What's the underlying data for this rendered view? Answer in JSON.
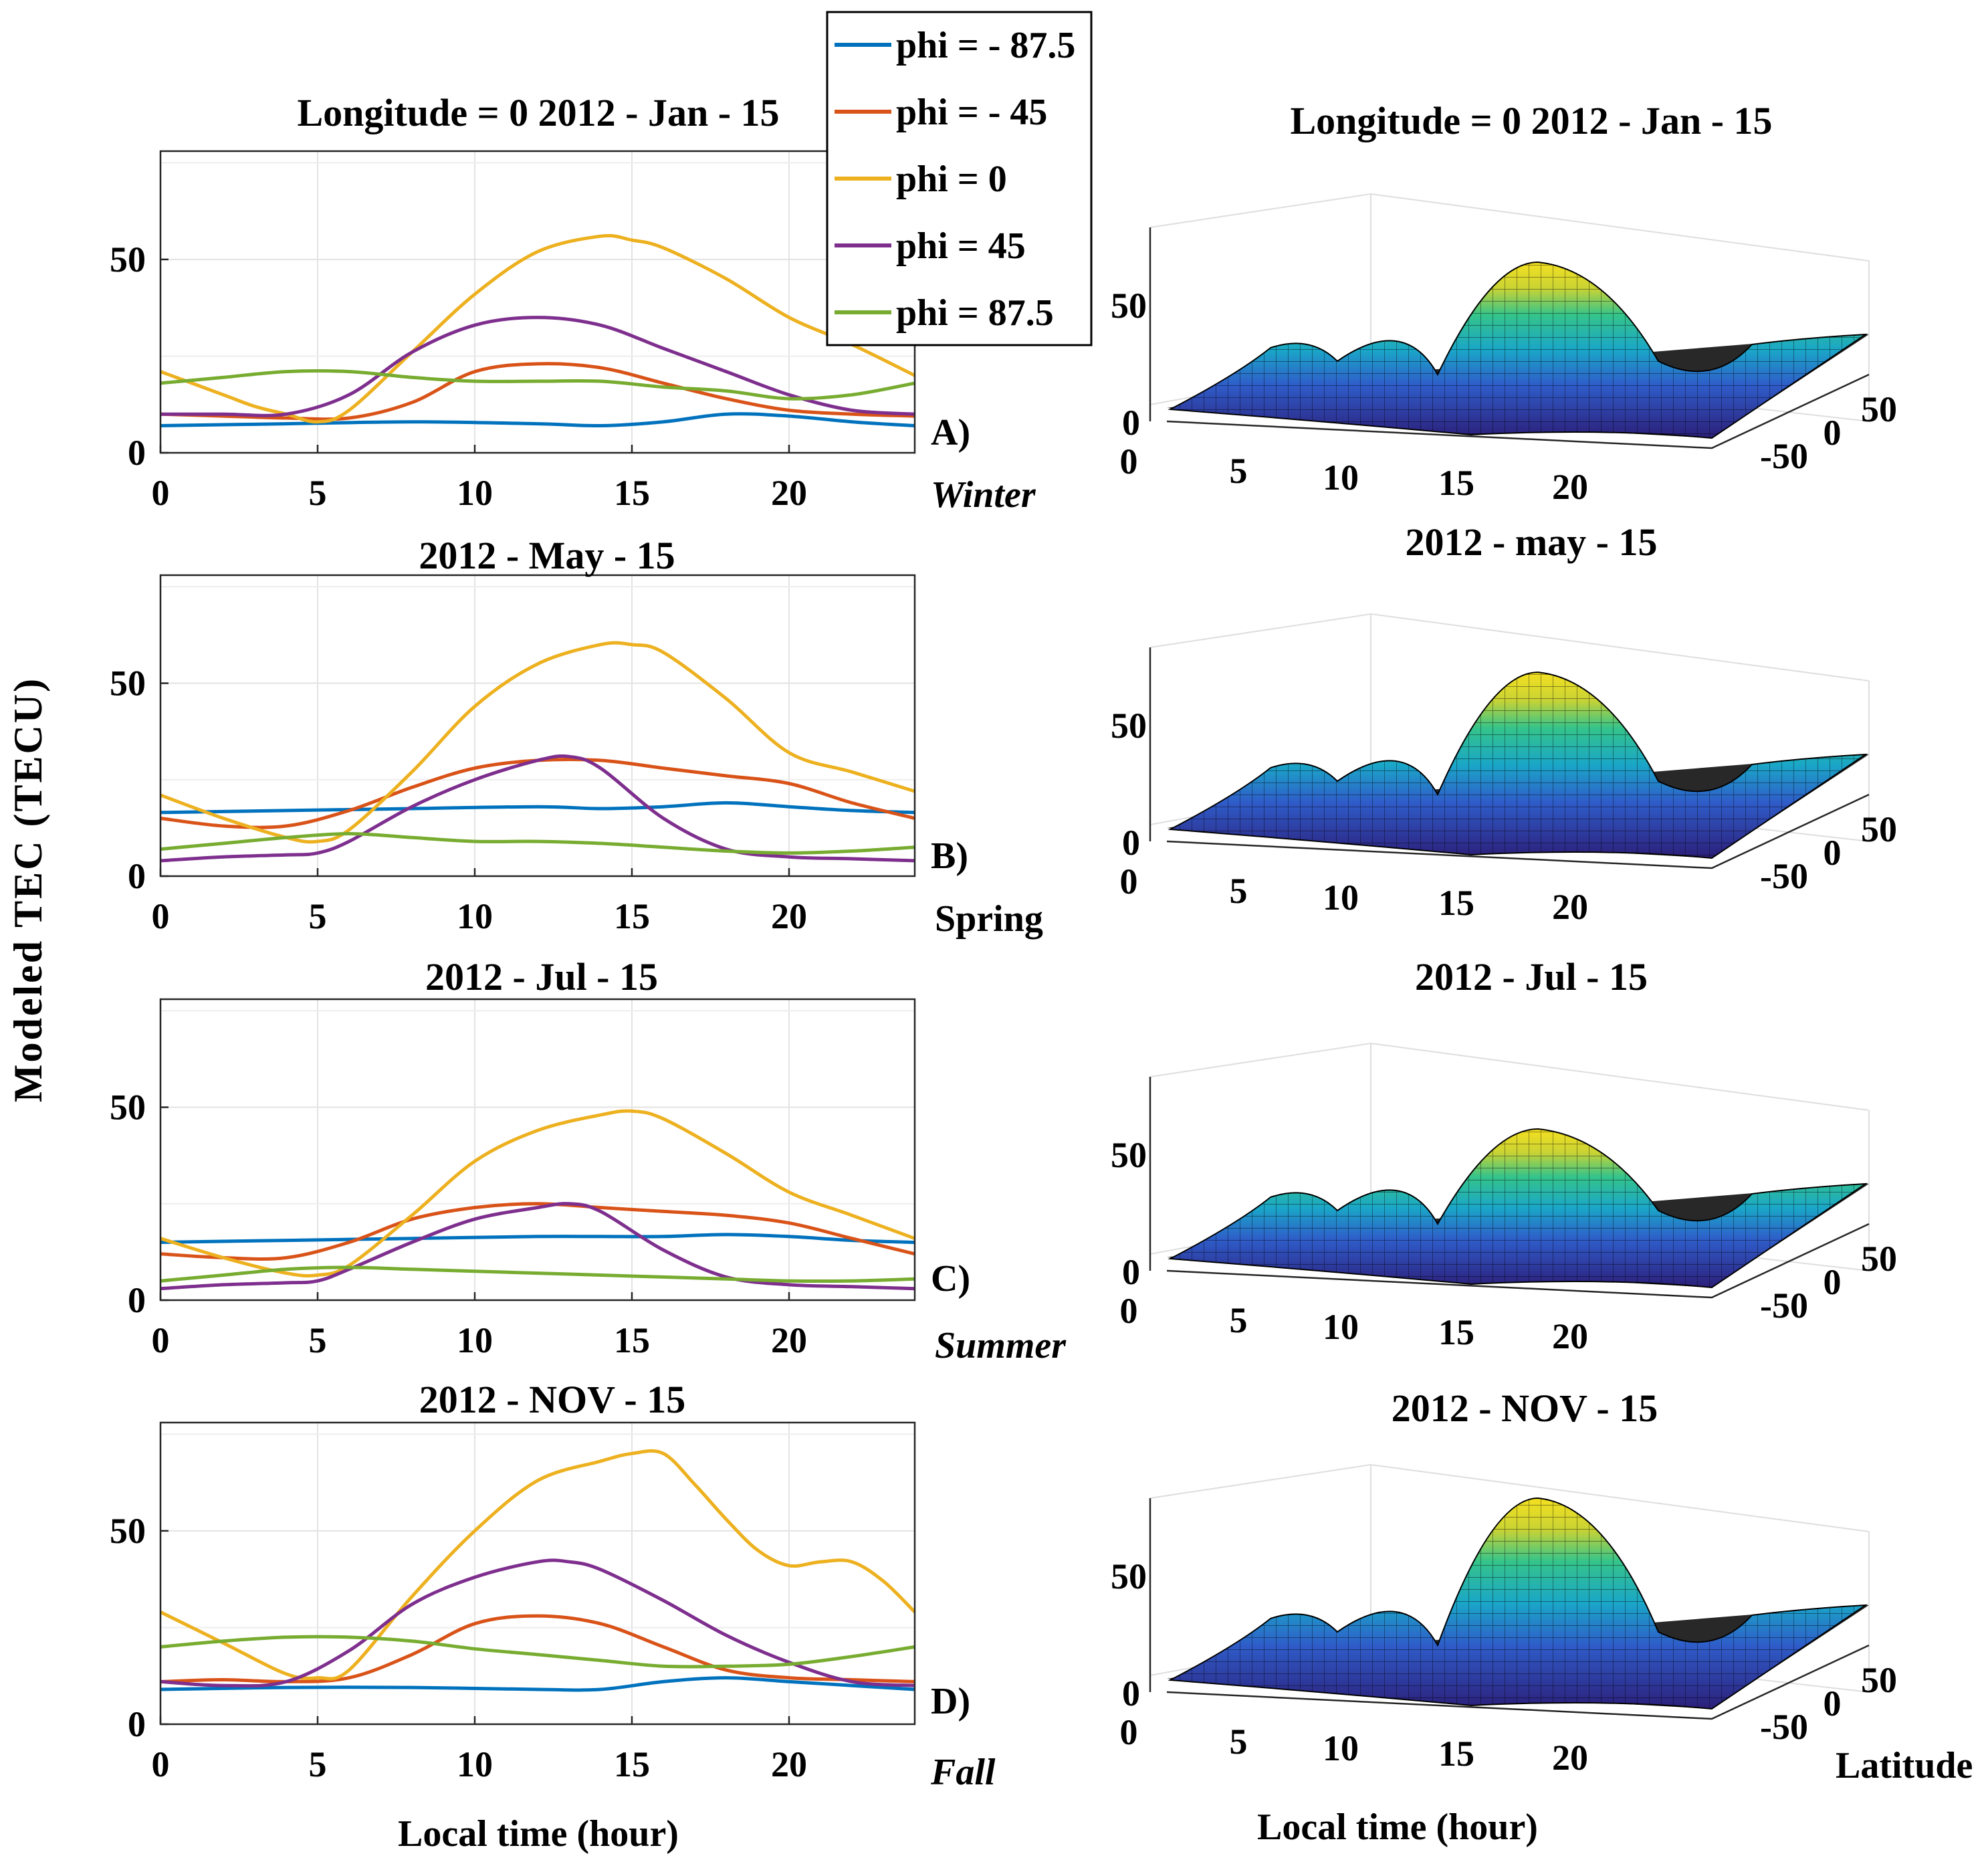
{
  "figure": {
    "ylabel": "Modeled TEC (TECU)",
    "xlabel_left": "Local time (hour)",
    "xlabel_right": "Local time (hour)",
    "latitude_label": "Latitude"
  },
  "legend": {
    "entries": [
      {
        "label": "phi = - 87.5",
        "color": "#0072BD"
      },
      {
        "label": "phi = - 45",
        "color": "#D95319"
      },
      {
        "label": "phi = 0",
        "color": "#EDB120"
      },
      {
        "label": "phi = 45",
        "color": "#7E2F8E"
      },
      {
        "label": "phi = 87.5",
        "color": "#77AC30"
      }
    ]
  },
  "chart_data": [
    {
      "type": "line",
      "title": "Longitude = 0   2012 - Jan - 15",
      "panel_label": "A)",
      "season": "Winter",
      "xlabel": "",
      "xlim": [
        0,
        24
      ],
      "ylim": [
        0,
        78
      ],
      "xticks": [
        0,
        5,
        10,
        15,
        20
      ],
      "yticks": [
        0,
        50
      ],
      "series": [
        {
          "name": "phi = - 87.5",
          "x": [
            0,
            4,
            8,
            12,
            14,
            16,
            18,
            20,
            22,
            24
          ],
          "values": [
            7,
            7.5,
            8,
            7.5,
            7,
            8,
            10,
            9.5,
            8,
            7
          ]
        },
        {
          "name": "phi = - 45",
          "x": [
            0,
            2,
            4,
            6,
            8,
            10,
            12,
            14,
            16,
            18,
            20,
            22,
            24
          ],
          "values": [
            10,
            9.5,
            9,
            9,
            13,
            21,
            23,
            22,
            18,
            14,
            11,
            10,
            9.5
          ]
        },
        {
          "name": "phi = 0",
          "x": [
            0,
            2,
            3,
            4,
            5,
            6,
            8,
            10,
            12,
            14,
            15,
            16,
            18,
            20,
            22,
            24
          ],
          "values": [
            21,
            15,
            12,
            10,
            8,
            11,
            26,
            41,
            52,
            56,
            55,
            53,
            45,
            35,
            28,
            20
          ]
        },
        {
          "name": "phi = 45",
          "x": [
            0,
            2,
            4,
            6,
            8,
            10,
            12,
            14,
            16,
            18,
            20,
            22,
            24
          ],
          "values": [
            10,
            10,
            10,
            15,
            26,
            33,
            35,
            33,
            27,
            21,
            15,
            11,
            10
          ]
        },
        {
          "name": "phi = 87.5",
          "x": [
            0,
            2,
            4,
            6,
            8,
            10,
            12,
            14,
            16,
            18,
            20,
            22,
            24
          ],
          "values": [
            18,
            19.5,
            21,
            21,
            19.5,
            18.5,
            18.5,
            18.5,
            17,
            16,
            14,
            15,
            18
          ]
        }
      ]
    },
    {
      "type": "line",
      "title": "2012 - May - 15",
      "panel_label": "B)",
      "season": "Spring",
      "xlabel": "",
      "xlim": [
        0,
        24
      ],
      "ylim": [
        0,
        78
      ],
      "xticks": [
        0,
        5,
        10,
        15,
        20
      ],
      "yticks": [
        0,
        50
      ],
      "series": [
        {
          "name": "phi = - 87.5",
          "x": [
            0,
            4,
            8,
            12,
            14,
            16,
            18,
            20,
            22,
            24
          ],
          "values": [
            16.5,
            17,
            17.5,
            18,
            17.5,
            18,
            19,
            18,
            17,
            16.5
          ]
        },
        {
          "name": "phi = - 45",
          "x": [
            0,
            2,
            4,
            6,
            8,
            10,
            12,
            14,
            16,
            18,
            20,
            22,
            24
          ],
          "values": [
            15,
            13,
            13,
            17,
            23,
            28,
            30,
            30,
            28,
            26,
            24,
            19,
            15
          ]
        },
        {
          "name": "phi = 0",
          "x": [
            0,
            2,
            4,
            5,
            6,
            8,
            10,
            12,
            14,
            15,
            16,
            18,
            20,
            22,
            24
          ],
          "values": [
            21,
            15,
            10,
            9,
            12,
            27,
            44,
            55,
            60,
            60,
            58,
            46,
            32,
            27,
            22
          ]
        },
        {
          "name": "phi = 45",
          "x": [
            0,
            2,
            4,
            5,
            6,
            8,
            10,
            12,
            13,
            14,
            16,
            18,
            20,
            22,
            24
          ],
          "values": [
            4,
            5,
            5.5,
            6,
            9,
            18,
            25,
            30,
            31,
            28,
            15,
            7,
            5,
            4.5,
            4
          ]
        },
        {
          "name": "phi = 87.5",
          "x": [
            0,
            2,
            4,
            6,
            8,
            10,
            12,
            14,
            16,
            18,
            20,
            22,
            24
          ],
          "values": [
            7,
            8.5,
            10,
            11,
            10,
            9,
            9,
            8.5,
            7.5,
            6.5,
            6,
            6.5,
            7.5
          ]
        }
      ]
    },
    {
      "type": "line",
      "title": "2012 - Jul - 15",
      "panel_label": "C)",
      "season": "Summer",
      "xlabel": "",
      "xlim": [
        0,
        24
      ],
      "ylim": [
        0,
        78
      ],
      "xticks": [
        0,
        5,
        10,
        15,
        20
      ],
      "yticks": [
        0,
        50
      ],
      "series": [
        {
          "name": "phi = - 87.5",
          "x": [
            0,
            4,
            8,
            12,
            14,
            16,
            18,
            20,
            22,
            24
          ],
          "values": [
            15,
            15.5,
            16,
            16.5,
            16.5,
            16.5,
            17,
            16.5,
            15.5,
            15
          ]
        },
        {
          "name": "phi = - 45",
          "x": [
            0,
            2,
            4,
            6,
            8,
            10,
            12,
            14,
            16,
            18,
            20,
            22,
            24
          ],
          "values": [
            12,
            11,
            11,
            15,
            21,
            24,
            25,
            24,
            23,
            22,
            20,
            16,
            12
          ]
        },
        {
          "name": "phi = 0",
          "x": [
            0,
            2,
            4,
            5,
            6,
            8,
            10,
            12,
            14,
            15,
            16,
            18,
            20,
            22,
            24
          ],
          "values": [
            16,
            11,
            7,
            6.5,
            9,
            22,
            36,
            44,
            48,
            49,
            47,
            38,
            28,
            22,
            16
          ]
        },
        {
          "name": "phi = 45",
          "x": [
            0,
            2,
            4,
            5,
            6,
            8,
            10,
            12,
            13,
            14,
            16,
            18,
            20,
            22,
            24
          ],
          "values": [
            3,
            4,
            4.5,
            5,
            8,
            15,
            21,
            24,
            25,
            23,
            13,
            6,
            4,
            3.5,
            3
          ]
        },
        {
          "name": "phi = 87.5",
          "x": [
            0,
            2,
            4,
            6,
            8,
            10,
            12,
            14,
            16,
            18,
            20,
            22,
            24
          ],
          "values": [
            5,
            6.5,
            8,
            8.5,
            8,
            7.5,
            7,
            6.5,
            6,
            5.5,
            5,
            5,
            5.5
          ]
        }
      ]
    },
    {
      "type": "line",
      "title": "2012 - NOV - 15",
      "panel_label": "D)",
      "season": "Fall",
      "xlabel": "Local time (hour)",
      "xlim": [
        0,
        24
      ],
      "ylim": [
        0,
        78
      ],
      "xticks": [
        0,
        5,
        10,
        15,
        20
      ],
      "yticks": [
        0,
        50
      ],
      "series": [
        {
          "name": "phi = - 87.5",
          "x": [
            0,
            4,
            8,
            12,
            14,
            16,
            18,
            20,
            22,
            24
          ],
          "values": [
            9,
            9.5,
            9.5,
            9,
            9,
            11,
            12,
            11,
            10,
            9
          ]
        },
        {
          "name": "phi = - 45",
          "x": [
            0,
            2,
            4,
            6,
            8,
            10,
            12,
            14,
            16,
            18,
            20,
            22,
            24
          ],
          "values": [
            11,
            11.5,
            11,
            12,
            18,
            26,
            28,
            26,
            20,
            14,
            12,
            11.5,
            11
          ]
        },
        {
          "name": "phi = 0",
          "x": [
            0,
            2,
            4,
            5,
            6,
            8,
            10,
            12,
            14,
            15,
            16,
            17,
            18,
            19,
            20,
            21,
            22,
            23,
            24
          ],
          "values": [
            29,
            21,
            13,
            12,
            14,
            33,
            50,
            63,
            68,
            70,
            70,
            62,
            53,
            45,
            41,
            42,
            42,
            37,
            29
          ]
        },
        {
          "name": "phi = 45",
          "x": [
            0,
            2,
            4,
            6,
            8,
            10,
            12,
            13,
            14,
            16,
            18,
            20,
            22,
            24
          ],
          "values": [
            11,
            10,
            11,
            19,
            31,
            38,
            42,
            42,
            40,
            32,
            23,
            16,
            11,
            10
          ]
        },
        {
          "name": "phi = 87.5",
          "x": [
            0,
            2,
            4,
            6,
            8,
            10,
            12,
            14,
            16,
            18,
            20,
            22,
            24
          ],
          "values": [
            20,
            21.5,
            22.5,
            22.5,
            21.5,
            19.5,
            18,
            16.5,
            15,
            15,
            15.5,
            17.5,
            20
          ]
        }
      ]
    },
    {
      "type": "surface",
      "title": "Longitude = 0   2012 - Jan - 15",
      "xlabel": "",
      "ylabel": "",
      "x_axis": "Local time (hour)",
      "y_axis": "Latitude",
      "xticks": [
        0,
        5,
        10,
        15,
        20
      ],
      "yticks": [
        -50,
        0,
        50
      ],
      "zticks": [
        0,
        50
      ],
      "peak_tecu": 56
    },
    {
      "type": "surface",
      "title": "2012 - may - 15",
      "x_axis": "Local time (hour)",
      "y_axis": "Latitude",
      "xticks": [
        0,
        5,
        10,
        15,
        20
      ],
      "yticks": [
        -50,
        0,
        50
      ],
      "zticks": [
        0,
        50
      ],
      "peak_tecu": 60
    },
    {
      "type": "surface",
      "title": "2012 - Jul - 15",
      "x_axis": "Local time (hour)",
      "y_axis": "Latitude",
      "xticks": [
        0,
        5,
        10,
        15,
        20
      ],
      "yticks": [
        -50,
        0,
        50
      ],
      "zticks": [
        0,
        50
      ],
      "peak_tecu": 49
    },
    {
      "type": "surface",
      "title": "2012 - NOV - 15",
      "xlabel": "Local time (hour)",
      "x_axis": "Local time (hour)",
      "y_axis": "Latitude",
      "xticks": [
        0,
        5,
        10,
        15,
        20
      ],
      "yticks": [
        -50,
        0,
        50
      ],
      "zticks": [
        0,
        50
      ],
      "peak_tecu": 70
    }
  ]
}
